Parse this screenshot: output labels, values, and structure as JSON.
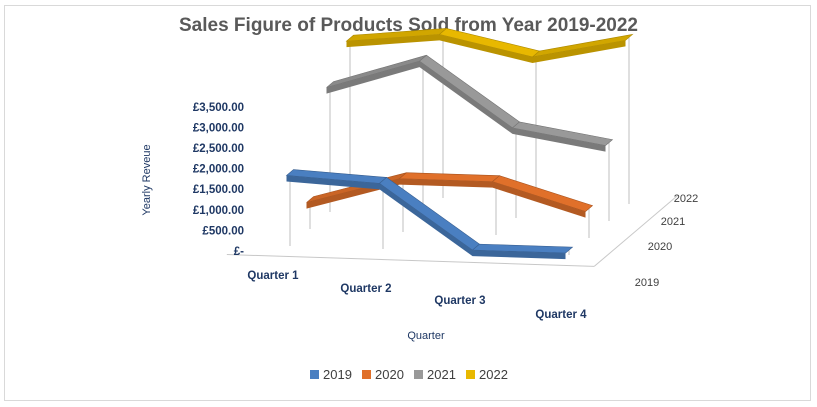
{
  "chart_data": {
    "type": "line",
    "subtype": "3d-line",
    "title": "Sales Figure of Products Sold from Year 2019-2022",
    "xlabel": "Quarter",
    "ylabel": "Yearly Reveue",
    "categories": [
      "Quarter 1",
      "Quarter 2",
      "Quarter 3",
      "Quarter 4"
    ],
    "y_ticks": [
      "£-",
      "£500.00",
      "£1,000.00",
      "£1,500.00",
      "£2,000.00",
      "£2,500.00",
      "£3,000.00",
      "£3,500.00"
    ],
    "ylim": [
      0,
      3500
    ],
    "depth_labels": [
      "2019",
      "2020",
      "2021",
      "2022"
    ],
    "legend_position": "bottom",
    "series": [
      {
        "name": "2019",
        "color": "#4a7fc1",
        "values": [
          1500,
          1400,
          100,
          100
        ]
      },
      {
        "name": "2020",
        "color": "#e0702a",
        "values": [
          600,
          1150,
          1150,
          600
        ]
      },
      {
        "name": "2021",
        "color": "#999999",
        "values": [
          2600,
          3200,
          1900,
          1600
        ]
      },
      {
        "name": "2022",
        "color": "#e8b800",
        "values": [
          3200,
          3400,
          3000,
          3400
        ]
      }
    ]
  }
}
